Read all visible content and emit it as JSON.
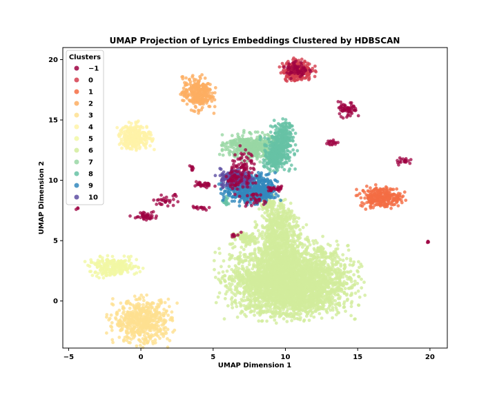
{
  "chart_data": {
    "type": "scatter",
    "title": "UMAP Projection of Lyrics Embeddings Clustered by HDBSCAN",
    "xlabel": "UMAP Dimension 1",
    "ylabel": "UMAP Dimension 2",
    "xlim": [
      -5.4,
      21.2
    ],
    "ylim": [
      -3.9,
      21.0
    ],
    "xticks": [
      -5,
      0,
      5,
      10,
      15,
      20
    ],
    "yticks": [
      0,
      5,
      10,
      15,
      20
    ],
    "xtick_labels": [
      "−5",
      "0",
      "5",
      "10",
      "15",
      "20"
    ],
    "ytick_labels": [
      "0",
      "5",
      "10",
      "15",
      "20"
    ],
    "grid": false,
    "legend": {
      "title": "Clusters",
      "placement": "top-left",
      "entries": [
        "−1",
        "0",
        "1",
        "2",
        "3",
        "4",
        "5",
        "6",
        "7",
        "8",
        "9",
        "10"
      ]
    },
    "series": [
      {
        "name": "−1",
        "color": "#9e0142",
        "blobs": [
          {
            "cx": 10.8,
            "cy": 19.2,
            "rx": 0.4,
            "ry": 0.35,
            "n": 60
          },
          {
            "cx": 14.3,
            "cy": 15.8,
            "rx": 0.35,
            "ry": 0.35,
            "n": 55
          },
          {
            "cx": 13.2,
            "cy": 13.1,
            "rx": 0.2,
            "ry": 0.15,
            "n": 15
          },
          {
            "cx": 18.2,
            "cy": 11.6,
            "rx": 0.3,
            "ry": 0.15,
            "n": 20
          },
          {
            "cx": 7.2,
            "cy": 10.8,
            "rx": 0.55,
            "ry": 0.9,
            "n": 90
          },
          {
            "cx": 6.4,
            "cy": 10.0,
            "rx": 0.3,
            "ry": 0.4,
            "n": 30
          },
          {
            "cx": 4.3,
            "cy": 9.6,
            "rx": 0.4,
            "ry": 0.15,
            "n": 30
          },
          {
            "cx": 4.1,
            "cy": 7.7,
            "rx": 0.3,
            "ry": 0.12,
            "n": 15
          },
          {
            "cx": 9.3,
            "cy": 9.3,
            "rx": 0.35,
            "ry": 0.12,
            "n": 25
          },
          {
            "cx": 3.5,
            "cy": 11.0,
            "rx": 0.12,
            "ry": 0.1,
            "n": 8
          },
          {
            "cx": 0.3,
            "cy": 7.1,
            "rx": 0.45,
            "ry": 0.2,
            "n": 40
          },
          {
            "cx": 1.6,
            "cy": 8.3,
            "rx": 0.4,
            "ry": 0.2,
            "n": 25
          },
          {
            "cx": 7.8,
            "cy": 8.4,
            "rx": 0.4,
            "ry": 0.25,
            "n": 25
          },
          {
            "cx": 6.5,
            "cy": 5.5,
            "rx": 0.2,
            "ry": 0.1,
            "n": 8
          },
          {
            "cx": 19.9,
            "cy": 4.9,
            "rx": 0.05,
            "ry": 0.05,
            "n": 4
          },
          {
            "cx": -4.4,
            "cy": 7.6,
            "rx": 0.05,
            "ry": 0.05,
            "n": 3
          },
          {
            "cx": 2.4,
            "cy": 8.7,
            "rx": 0.1,
            "ry": 0.1,
            "n": 4
          }
        ]
      },
      {
        "name": "0",
        "color": "#d53e4f",
        "blobs": [
          {
            "cx": 10.8,
            "cy": 19.1,
            "rx": 0.55,
            "ry": 0.45,
            "n": 250
          }
        ]
      },
      {
        "name": "1",
        "color": "#f46d43",
        "blobs": [
          {
            "cx": 16.6,
            "cy": 8.6,
            "rx": 0.75,
            "ry": 0.45,
            "n": 250
          }
        ]
      },
      {
        "name": "2",
        "color": "#fdae61",
        "blobs": [
          {
            "cx": 3.9,
            "cy": 17.2,
            "rx": 0.55,
            "ry": 0.7,
            "n": 280
          }
        ]
      },
      {
        "name": "3",
        "color": "#fee08b",
        "blobs": [
          {
            "cx": 0.1,
            "cy": -1.7,
            "rx": 1.05,
            "ry": 0.95,
            "n": 550
          }
        ]
      },
      {
        "name": "4",
        "color": "#ffffbf",
        "blobs": [
          {
            "cx": -0.4,
            "cy": 13.6,
            "rx": 0.6,
            "ry": 0.55,
            "n": 0
          }
        ]
      },
      {
        "name": "5",
        "color": "#e6f598",
        "blobs": [
          {
            "cx": -1.9,
            "cy": 2.8,
            "rx": 0.9,
            "ry": 0.4,
            "n": 220
          }
        ]
      },
      {
        "name": "6",
        "color": "#abdda4",
        "blobs": [
          {
            "cx": 10.3,
            "cy": 1.9,
            "rx": 2.4,
            "ry": 1.6,
            "n": 2600
          },
          {
            "cx": 10.5,
            "cy": 0.3,
            "rx": 1.9,
            "ry": 1.0,
            "n": 700
          },
          {
            "cx": 9.6,
            "cy": 4.7,
            "rx": 0.9,
            "ry": 1.4,
            "n": 500
          },
          {
            "cx": 9.6,
            "cy": 6.8,
            "rx": 0.6,
            "ry": 1.0,
            "n": 200
          },
          {
            "cx": 8.7,
            "cy": 8.0,
            "rx": 0.3,
            "ry": 0.4,
            "n": 50
          },
          {
            "cx": 7.5,
            "cy": 5.1,
            "rx": 0.35,
            "ry": 0.25,
            "n": 40
          },
          {
            "cx": 6.9,
            "cy": 5.3,
            "rx": 0.4,
            "ry": 0.2,
            "n": 40
          },
          {
            "cx": 12.4,
            "cy": 4.1,
            "rx": 0.2,
            "ry": 0.2,
            "n": 20
          },
          {
            "cx": 8.3,
            "cy": 1.6,
            "rx": 1.1,
            "ry": 0.45,
            "n": 200
          }
        ]
      },
      {
        "name": "7",
        "color": "#66c2a5",
        "blobs": [
          {
            "cx": 7.7,
            "cy": 12.8,
            "rx": 0.95,
            "ry": 0.55,
            "n": 420
          }
        ]
      },
      {
        "name": "8",
        "color": "#3288bd",
        "blobs": [
          {
            "cx": 9.5,
            "cy": 12.6,
            "rx": 0.55,
            "ry": 0.8,
            "n": 280
          },
          {
            "cx": 9.9,
            "cy": 13.9,
            "rx": 0.35,
            "ry": 0.5,
            "n": 100
          },
          {
            "cx": 9.1,
            "cy": 11.6,
            "rx": 0.3,
            "ry": 0.45,
            "n": 80
          },
          {
            "cx": 5.9,
            "cy": 8.3,
            "rx": 0.12,
            "ry": 0.2,
            "n": 15
          }
        ]
      },
      {
        "name": "9",
        "color": "#4e79b7",
        "blobs": [
          {
            "cx": 7.6,
            "cy": 9.3,
            "rx": 0.95,
            "ry": 0.6,
            "n": 500
          },
          {
            "cx": 8.1,
            "cy": 8.7,
            "rx": 0.4,
            "ry": 0.35,
            "n": 100
          }
        ]
      },
      {
        "name": "10",
        "color": "#5e4fa2",
        "blobs": [
          {
            "cx": 6.6,
            "cy": 10.2,
            "rx": 0.6,
            "ry": 0.4,
            "n": 200
          }
        ]
      }
    ]
  },
  "style": {
    "cluster_colors": {
      "-1": "#9e0142",
      "0": "#d53e4f",
      "1": "#f46d43",
      "2": "#fdae61",
      "3": "#fee090",
      "4": "#fff3a8",
      "5": "#f1f8a4",
      "6": "#d2ec9c",
      "7": "#99d7a4",
      "8": "#66c2a5",
      "9": "#3288bd",
      "10": "#5e4fa2"
    }
  }
}
